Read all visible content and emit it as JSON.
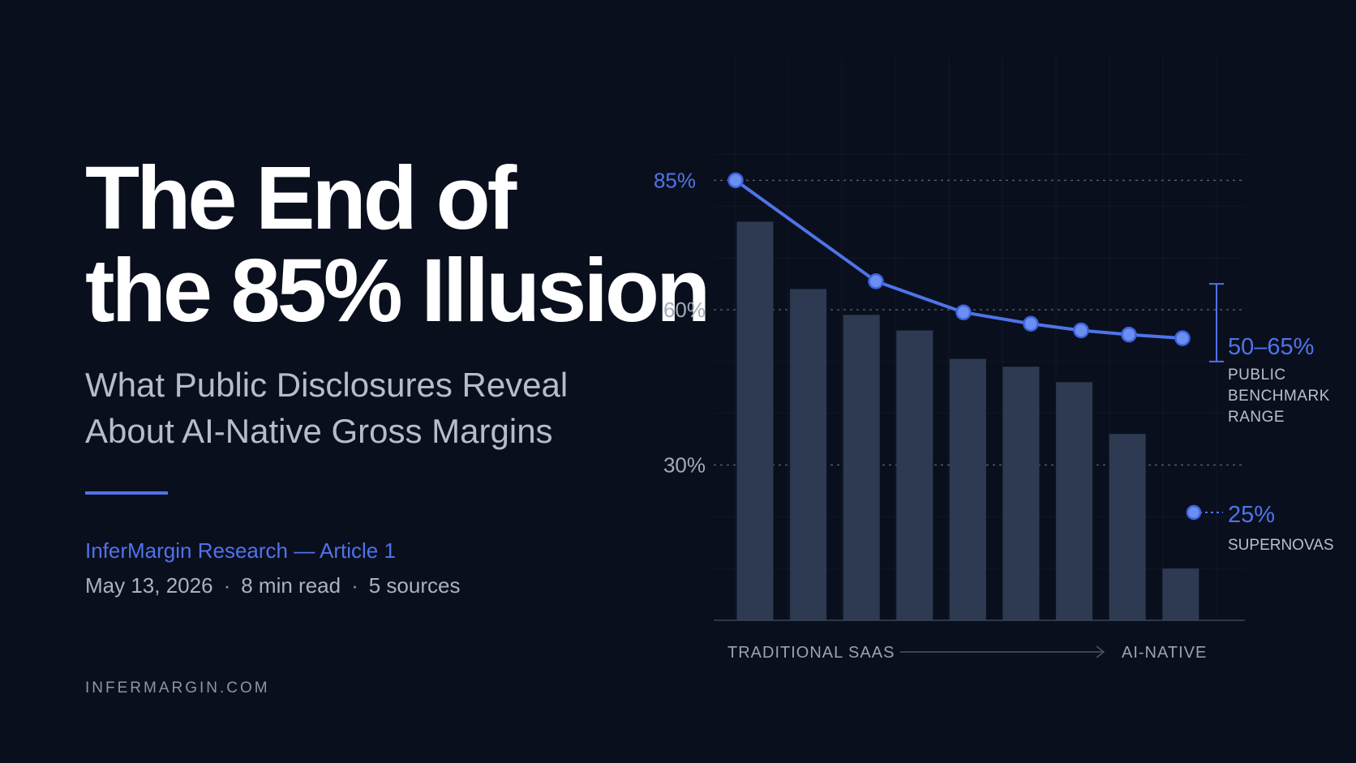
{
  "header": {
    "title_lines": [
      "The End of",
      "the 85% Illusion"
    ],
    "subtitle_lines": [
      "What Public Disclosures Reveal",
      "About AI-Native Gross Margins"
    ],
    "byline": "InferMargin Research — Article 1",
    "date": "May 13, 2026",
    "read_time": "8 min read",
    "sources": "5 sources",
    "site": "INFERMARGIN.COM"
  },
  "colors": {
    "background": "#0a0f1e",
    "accent": "#4f74e8",
    "bar": "#2d3a51",
    "text": "#ffffff",
    "muted": "#b6bccb"
  },
  "chart_data": {
    "type": "bar",
    "ylim": [
      0,
      90
    ],
    "y_ticks": [
      {
        "value": 85,
        "label": "85%",
        "highlight": true
      },
      {
        "value": 60,
        "label": "60%",
        "highlight": false
      },
      {
        "value": 30,
        "label": "30%",
        "highlight": false
      }
    ],
    "grid": true,
    "bar_values": [
      77,
      64,
      59,
      56,
      50.5,
      49,
      46,
      36,
      10
    ],
    "line_values": [
      85,
      65.5,
      59.5,
      57.3,
      56,
      55.2,
      54.5
    ],
    "x_axis": {
      "left_label": "TRADITIONAL SAAS",
      "right_label": "AI-NATIVE"
    },
    "annotations": {
      "range": {
        "low": 50,
        "high": 65,
        "value": "50–65%",
        "label_lines": [
          "PUBLIC",
          "BENCHMARK",
          "RANGE"
        ]
      },
      "point": {
        "value": 25,
        "value_label": "25%",
        "label": "SUPERNOVAS"
      }
    }
  }
}
